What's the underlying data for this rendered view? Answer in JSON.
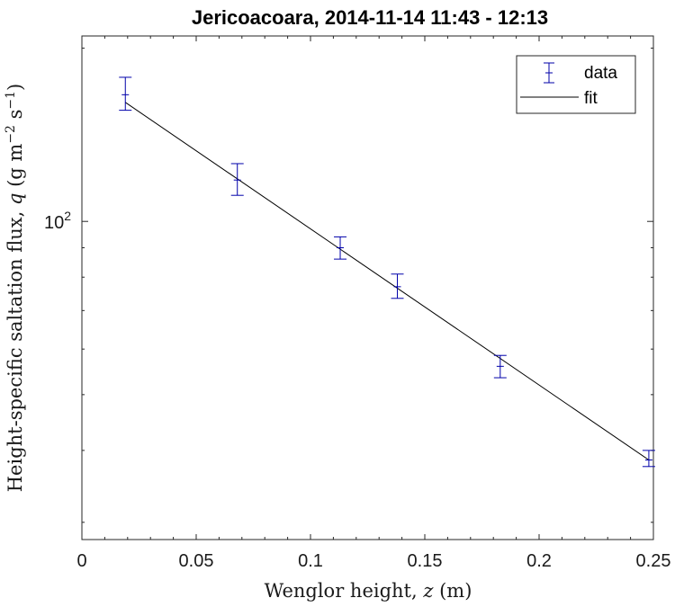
{
  "chart_data": {
    "type": "scatter",
    "title": "Jericoacoara, 2014-11-14 11:43 - 12:13",
    "xlabel": "Wenglor height, z (m)",
    "ylabel": "Height-specific saltation flux, q (g m^-2 s^-1)",
    "xlim": [
      0,
      0.25
    ],
    "ylim": [
      28,
      210
    ],
    "yscale": "log",
    "x_ticks": [
      "0",
      "0.05",
      "0.1",
      "0.15",
      "0.2",
      "0.25"
    ],
    "x_tick_values": [
      0,
      0.05,
      0.1,
      0.15,
      0.2,
      0.25
    ],
    "y_ticks": [
      {
        "value": 100,
        "base": "10",
        "exp": "2"
      }
    ],
    "series": [
      {
        "name": "data",
        "style": "errorbar",
        "color": "#0000aa",
        "x": [
          0.019,
          0.068,
          0.113,
          0.138,
          0.183,
          0.248
        ],
        "y": [
          166,
          118,
          90,
          77,
          56,
          38.5
        ],
        "y_low": [
          156,
          111,
          86,
          73.5,
          53.5,
          37.5
        ],
        "y_high": [
          178,
          126,
          94,
          81,
          58.5,
          40
        ]
      },
      {
        "name": "fit",
        "style": "line",
        "color": "#000000",
        "x": [
          0.019,
          0.248
        ],
        "y": [
          161,
          38.5
        ]
      }
    ],
    "grid": false,
    "legend": {
      "position": "top-right",
      "entries": [
        "data",
        "fit"
      ]
    }
  }
}
